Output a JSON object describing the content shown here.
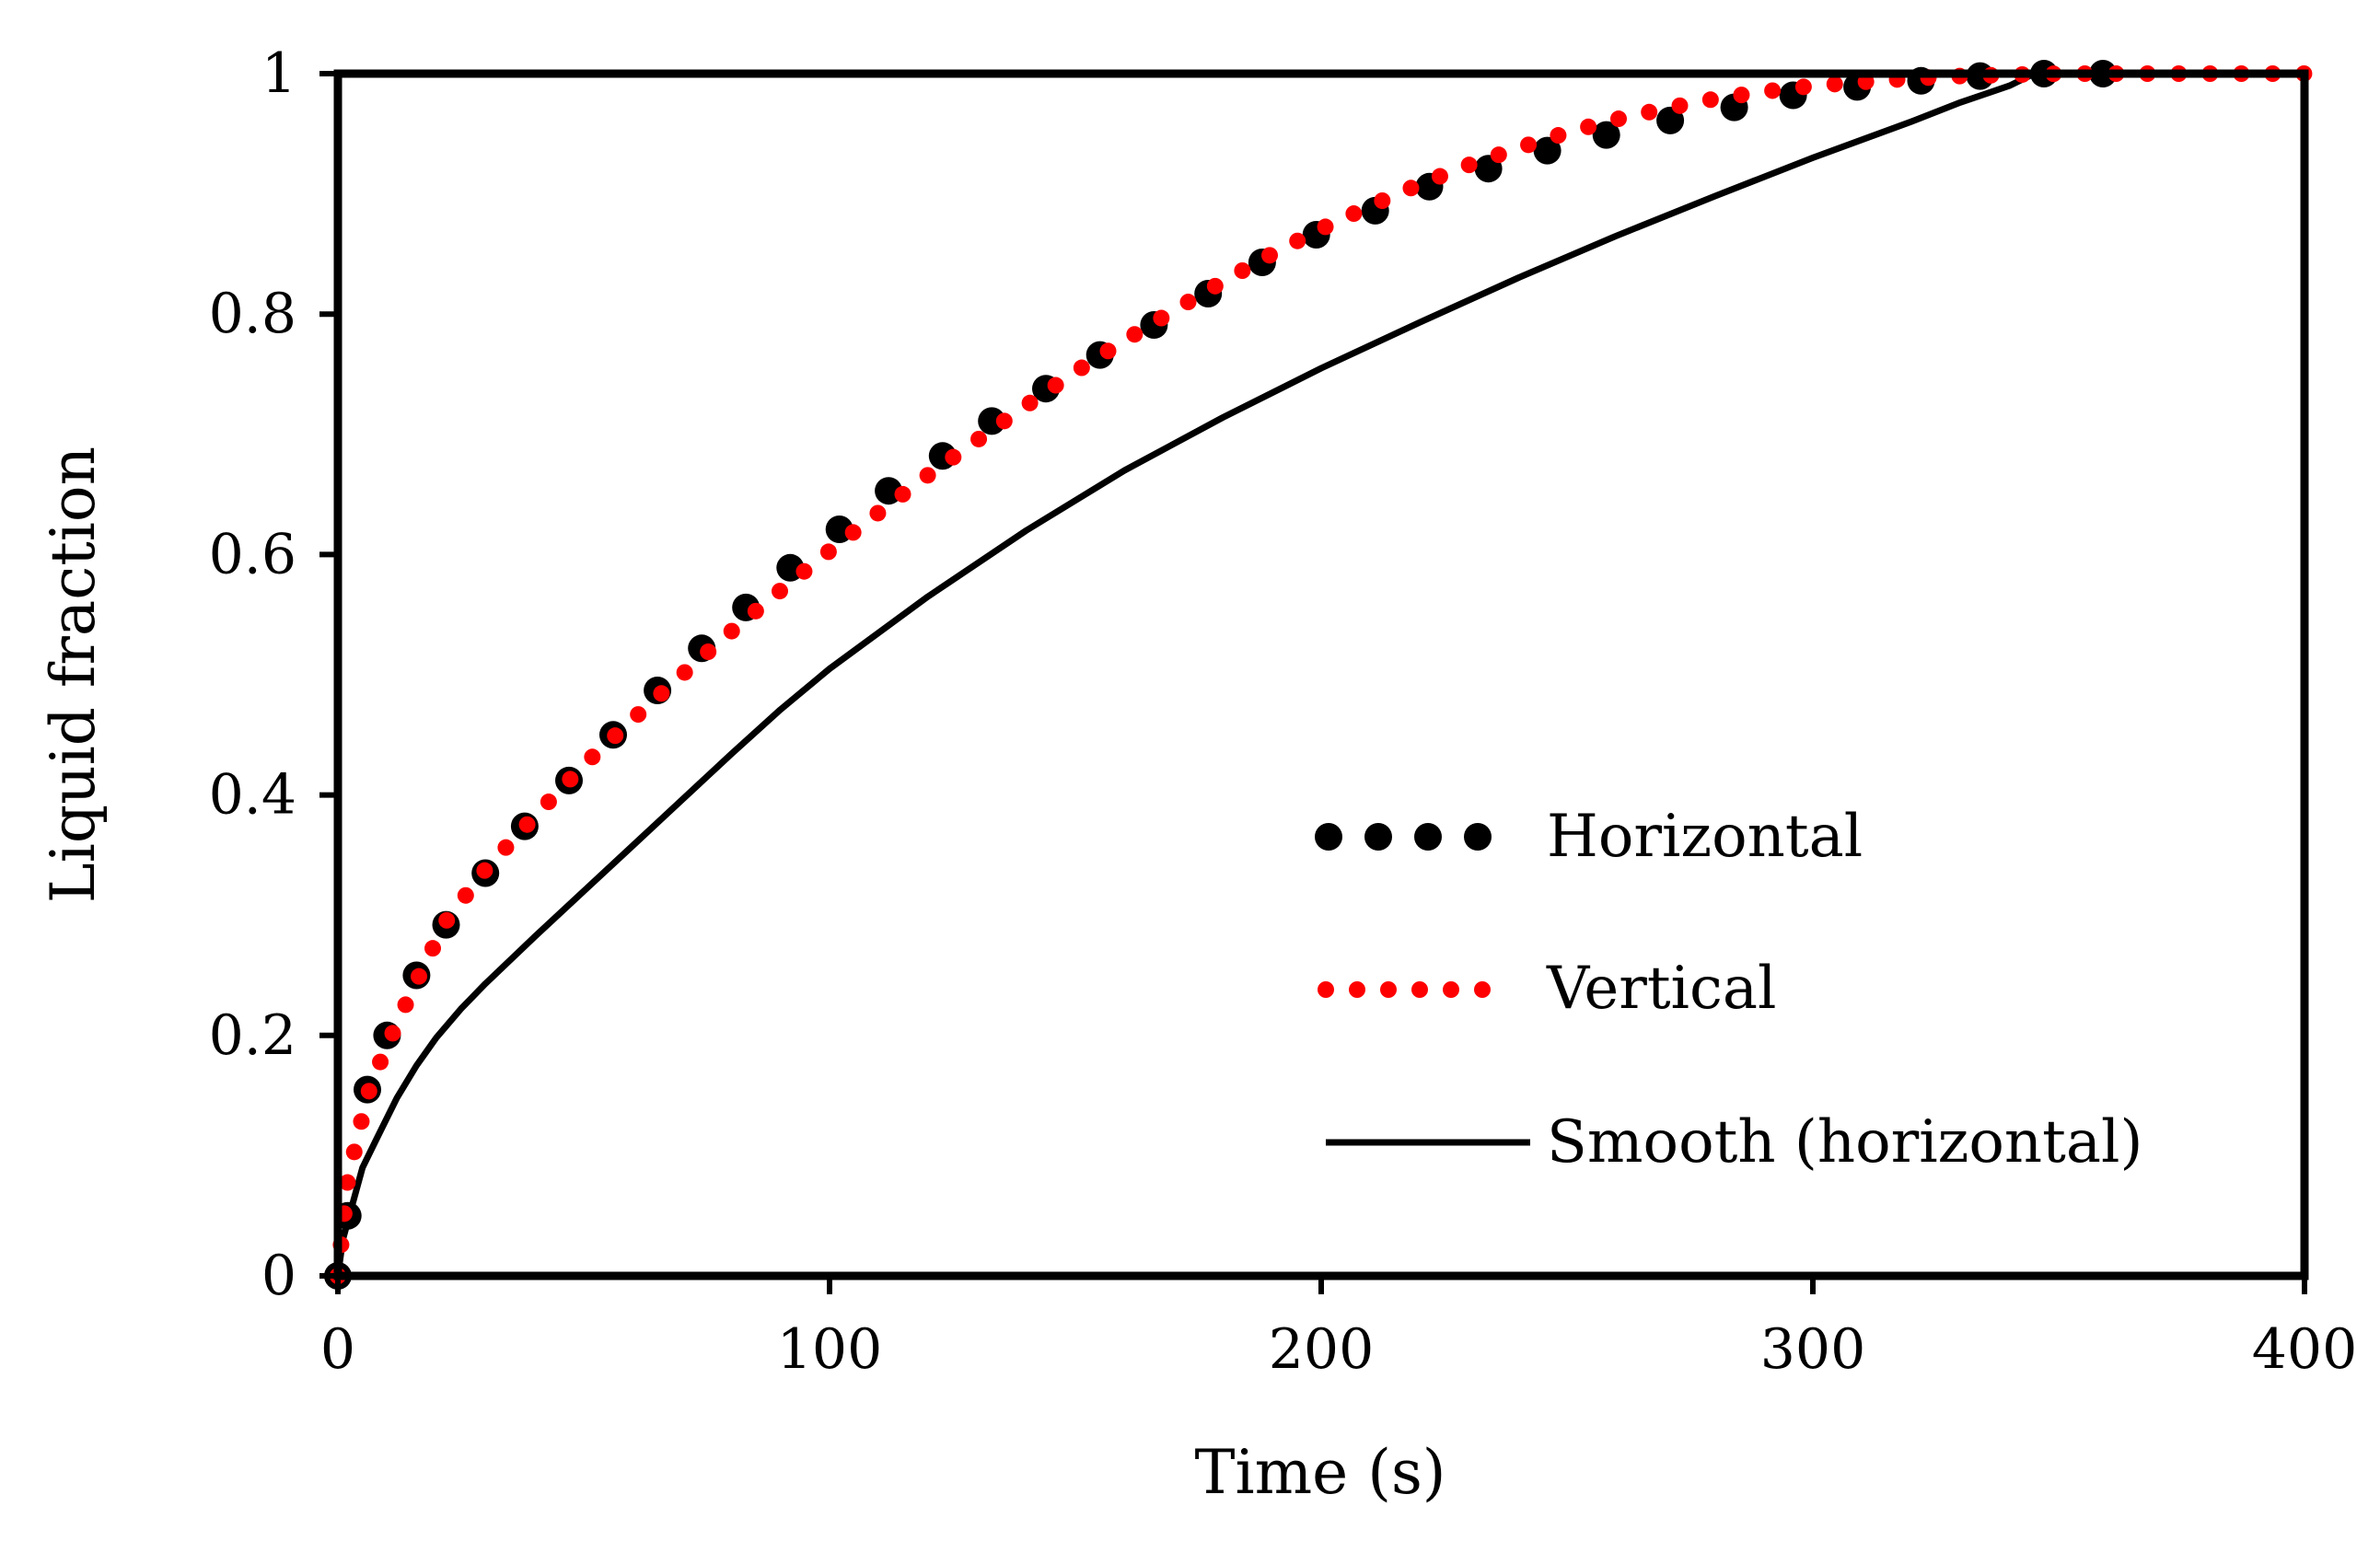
{
  "chart_data": {
    "type": "line",
    "title": "",
    "xlabel": "Time (s)",
    "ylabel": "Liquid fraction",
    "xlim": [
      0,
      400
    ],
    "ylim": [
      0,
      1
    ],
    "x_ticks": [
      0,
      100,
      200,
      300,
      400
    ],
    "y_ticks": [
      0,
      0.2,
      0.4,
      0.6,
      0.8,
      1
    ],
    "x_tick_labels": [
      "0",
      "100",
      "200",
      "300",
      "400"
    ],
    "y_tick_labels": [
      "0",
      "0.2",
      "0.4",
      "0.6",
      "0.8",
      "1"
    ],
    "grid": false,
    "legend_position": "center-right",
    "series": [
      {
        "name": "Horizontal",
        "style": "large-dots",
        "color": "#000000",
        "x": [
          0,
          2,
          6,
          10,
          16,
          22,
          30,
          38,
          47,
          56,
          65,
          74,
          83,
          92,
          102,
          112,
          123,
          133,
          144,
          155,
          166,
          177,
          188,
          199,
          211,
          222,
          234,
          246,
          258,
          271,
          284,
          296,
          309,
          322,
          334,
          347,
          359
        ],
        "y": [
          0.0,
          0.05,
          0.155,
          0.2,
          0.25,
          0.292,
          0.335,
          0.374,
          0.412,
          0.45,
          0.487,
          0.522,
          0.556,
          0.589,
          0.621,
          0.653,
          0.682,
          0.711,
          0.738,
          0.766,
          0.791,
          0.817,
          0.843,
          0.866,
          0.886,
          0.906,
          0.921,
          0.936,
          0.949,
          0.961,
          0.972,
          0.982,
          0.989,
          0.994,
          0.998,
          1.0,
          1.0
        ]
      },
      {
        "name": "Vertical",
        "style": "dotted",
        "color": "#ff0000",
        "x": [
          0,
          1,
          2,
          4,
          6,
          8,
          12,
          16,
          22,
          30,
          40,
          50,
          60,
          70,
          80,
          90,
          100,
          110,
          120,
          130,
          140,
          150,
          160,
          170,
          180,
          190,
          200,
          210,
          220,
          230,
          240,
          250,
          260,
          270,
          280,
          290,
          300,
          310,
          320,
          330,
          340,
          350,
          360,
          370,
          380,
          390,
          400
        ],
        "y": [
          0.0,
          0.04,
          0.08,
          0.115,
          0.15,
          0.172,
          0.21,
          0.245,
          0.295,
          0.338,
          0.382,
          0.425,
          0.463,
          0.5,
          0.536,
          0.57,
          0.603,
          0.635,
          0.666,
          0.695,
          0.724,
          0.752,
          0.778,
          0.803,
          0.827,
          0.85,
          0.871,
          0.89,
          0.908,
          0.924,
          0.938,
          0.951,
          0.962,
          0.971,
          0.979,
          0.985,
          0.99,
          0.993,
          0.996,
          0.998,
          0.999,
          1.0,
          1.0,
          1.0,
          1.0,
          1.0,
          1.0
        ]
      },
      {
        "name": "Smooth (horizontal)",
        "style": "solid",
        "color": "#000000",
        "x": [
          0,
          1,
          3,
          5,
          8,
          12,
          16,
          20,
          25,
          30,
          40,
          50,
          60,
          70,
          80,
          90,
          100,
          120,
          140,
          160,
          180,
          200,
          220,
          240,
          260,
          280,
          300,
          320,
          330,
          340,
          345,
          350,
          360,
          380,
          400
        ],
        "y": [
          0.0,
          0.03,
          0.06,
          0.09,
          0.115,
          0.148,
          0.175,
          0.198,
          0.222,
          0.243,
          0.282,
          0.32,
          0.358,
          0.396,
          0.434,
          0.471,
          0.505,
          0.565,
          0.62,
          0.67,
          0.714,
          0.755,
          0.793,
          0.83,
          0.865,
          0.898,
          0.93,
          0.96,
          0.976,
          0.99,
          1.0,
          1.0,
          1.0,
          1.0,
          1.0
        ]
      }
    ]
  }
}
